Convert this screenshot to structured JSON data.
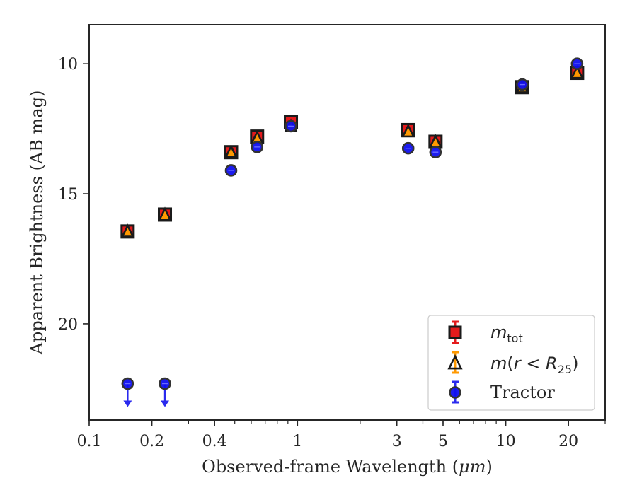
{
  "chart_data": {
    "type": "scatter",
    "xlabel_text": "Observed-frame Wavelength (",
    "xlabel_unit": "μm",
    "xlabel_close": ")",
    "ylabel": "Apparent Brightness (AB mag)",
    "x_scale": "log",
    "xlim": [
      0.1,
      30
    ],
    "ylim": [
      23.7,
      8.5
    ],
    "y_inverted": true,
    "x_ticks": [
      0.1,
      0.2,
      0.4,
      1,
      3,
      5,
      10,
      20
    ],
    "x_tick_labels": [
      "0.1",
      "0.2",
      "0.4",
      "1",
      "3",
      "5",
      "10",
      "20"
    ],
    "y_ticks": [
      10,
      15,
      20
    ],
    "y_tick_labels": [
      "10",
      "15",
      "20"
    ],
    "grid": false,
    "legend_position": "lower-right",
    "series": [
      {
        "name": "m_tot",
        "legend_label": {
          "main": "m",
          "sub": "tot"
        },
        "marker": "square",
        "color": "#e41a1c",
        "edge": "#1a1a1a",
        "points": [
          {
            "x": 0.153,
            "y": 16.45
          },
          {
            "x": 0.231,
            "y": 15.8
          },
          {
            "x": 0.48,
            "y": 13.4
          },
          {
            "x": 0.64,
            "y": 12.8
          },
          {
            "x": 0.93,
            "y": 12.25
          },
          {
            "x": 3.4,
            "y": 12.55
          },
          {
            "x": 4.6,
            "y": 13.0
          },
          {
            "x": 12.0,
            "y": 10.9
          },
          {
            "x": 22.0,
            "y": 10.35
          }
        ]
      },
      {
        "name": "m(r<R25)",
        "legend_label": {
          "main": "m",
          "paren_open": "(",
          "var": "r",
          "op": " < ",
          "R": "R",
          "sub": "25",
          "paren_close": ")"
        },
        "marker": "triangle",
        "color": "#ff9900",
        "edge": "#1a1a1a",
        "points": [
          {
            "x": 0.153,
            "y": 16.45
          },
          {
            "x": 0.231,
            "y": 15.8
          },
          {
            "x": 0.48,
            "y": 13.4
          },
          {
            "x": 0.64,
            "y": 12.85
          },
          {
            "x": 0.93,
            "y": 12.4
          },
          {
            "x": 3.4,
            "y": 12.6
          },
          {
            "x": 4.6,
            "y": 13.0
          },
          {
            "x": 12.0,
            "y": 10.9
          },
          {
            "x": 22.0,
            "y": 10.35
          }
        ]
      },
      {
        "name": "Tractor",
        "legend_label": {
          "main": "Tractor"
        },
        "marker": "circle",
        "color": "#1010ee",
        "edge": "#333333",
        "points": [
          {
            "x": 0.153,
            "y": 22.3,
            "upper_limit": true
          },
          {
            "x": 0.231,
            "y": 22.3,
            "upper_limit": true
          },
          {
            "x": 0.48,
            "y": 14.1
          },
          {
            "x": 0.64,
            "y": 13.2
          },
          {
            "x": 0.93,
            "y": 12.4
          },
          {
            "x": 3.4,
            "y": 13.25
          },
          {
            "x": 4.6,
            "y": 13.4
          },
          {
            "x": 12.0,
            "y": 10.8
          },
          {
            "x": 22.0,
            "y": 10.0
          }
        ]
      }
    ]
  }
}
